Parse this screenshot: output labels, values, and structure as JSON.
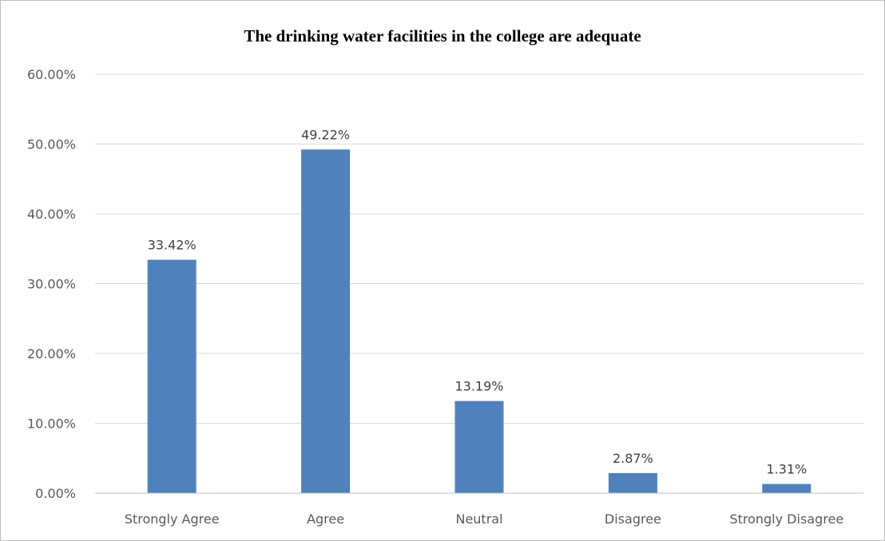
{
  "chart_data": {
    "type": "bar",
    "title": "The drinking water facilities in the college are adequate",
    "categories": [
      "Strongly Agree",
      "Agree",
      "Neutral",
      "Disagree",
      "Strongly Disagree"
    ],
    "values": [
      33.42,
      49.22,
      13.19,
      2.87,
      1.31
    ],
    "data_labels": [
      "33.42%",
      "49.22%",
      "13.19%",
      "2.87%",
      "1.31%"
    ],
    "y_ticks": [
      0,
      10,
      20,
      30,
      40,
      50,
      60
    ],
    "y_tick_labels": [
      "0.00%",
      "10.00%",
      "20.00%",
      "30.00%",
      "40.00%",
      "50.00%",
      "60.00%"
    ],
    "xlabel": "",
    "ylabel": "",
    "ylim": [
      0,
      60
    ],
    "grid": true,
    "legend": "none",
    "bar_color": "#4f81bd"
  }
}
